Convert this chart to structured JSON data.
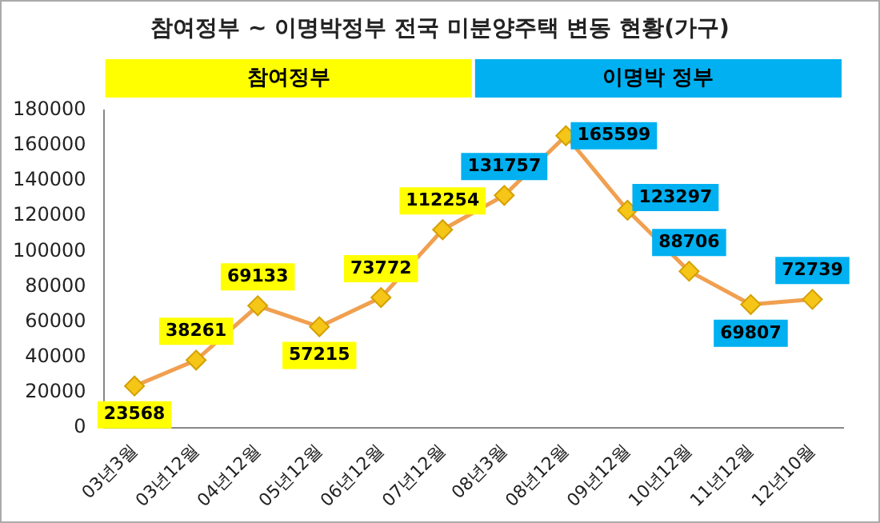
{
  "chart_data": {
    "type": "line",
    "title": "참여정부 ~ 이명박정부 전국 미분양주택 변동 현황(가구)",
    "categories": [
      "03년3월",
      "03년12월",
      "04년12월",
      "05년12월",
      "06년12월",
      "07년12월",
      "08년3월",
      "08년12월",
      "09년12월",
      "10년12월",
      "11년12월",
      "12년10월"
    ],
    "series": [
      {
        "color": "#f0a050",
        "values": [
          23568,
          38261,
          69133,
          57215,
          73772,
          112254,
          131757,
          165599,
          123297,
          88706,
          69807,
          72739
        ]
      }
    ],
    "marker": "diamond",
    "data_labels": true,
    "grid": false,
    "legend": false,
    "ylim": [
      0,
      180000
    ],
    "yticks": [
      0,
      20000,
      40000,
      60000,
      80000,
      100000,
      120000,
      140000,
      160000,
      180000
    ],
    "annotations": [
      "참여정부",
      "이명박 정부"
    ]
  }
}
